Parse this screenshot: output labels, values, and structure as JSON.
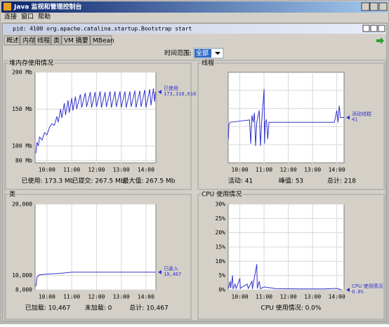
{
  "window": {
    "title": "Java 监视和管理控制台",
    "menu": [
      "连接",
      "窗口",
      "帮助"
    ]
  },
  "frame": {
    "title": "pid: 4100 org.apache.catalina.startup.Bootstrap start"
  },
  "tabs": [
    "概述",
    "内存",
    "线程",
    "类",
    "VM 摘要",
    "MBean"
  ],
  "time_range": {
    "label": "时间范围:",
    "value": "全部"
  },
  "chart_data": [
    {
      "type": "line",
      "title": "堆内存使用情况",
      "x": [
        9.55,
        9.6,
        9.65,
        9.7,
        9.8,
        9.9,
        10.0,
        10.1,
        10.2,
        10.3,
        10.4,
        10.45,
        10.55,
        10.6,
        10.7,
        10.75,
        10.85,
        10.9,
        11.0,
        11.05,
        11.15,
        11.2,
        11.35,
        11.4,
        11.55,
        11.6,
        11.75,
        11.8,
        11.95,
        12.0,
        12.15,
        12.2,
        12.35,
        12.4,
        12.55,
        12.6,
        12.75,
        12.8,
        12.95,
        13.0,
        13.15,
        13.2,
        13.35,
        13.4,
        13.55,
        13.6,
        13.75,
        13.8,
        13.95,
        14.0,
        14.15,
        14.2,
        14.3,
        14.35,
        14.38
      ],
      "series": [
        {
          "name": "已使用",
          "legend_value": "173,318,616",
          "color": "#3333cc",
          "values": [
            90,
            105,
            100,
            112,
            108,
            118,
            115,
            125,
            130,
            128,
            140,
            132,
            150,
            138,
            158,
            142,
            162,
            145,
            165,
            148,
            167,
            150,
            170,
            152,
            172,
            153,
            173,
            152,
            173,
            153,
            174,
            152,
            173,
            153,
            174,
            152,
            174,
            153,
            174,
            152,
            174,
            152,
            174,
            153,
            175,
            152,
            175,
            153,
            176,
            152,
            177,
            155,
            178,
            160,
            173.3
          ]
        }
      ],
      "xlim": [
        9.52,
        14.4
      ],
      "xticks": [
        {
          "value": 10,
          "label": "10:00"
        },
        {
          "value": 11,
          "label": "11:00"
        },
        {
          "value": 12,
          "label": "12:00"
        },
        {
          "value": 13,
          "label": "13:00"
        },
        {
          "value": 14,
          "label": "14:00"
        }
      ],
      "ylim": [
        77,
        200
      ],
      "yticks": [
        {
          "value": 80,
          "label": "80 Mb"
        },
        {
          "value": 100,
          "label": "100 Mb"
        },
        {
          "value": 150,
          "label": "150 Mb"
        },
        {
          "value": 200,
          "label": "200 Mb"
        }
      ],
      "footer": [
        "已使用: 173.3 Mb",
        "已提交: 267.5 Mb",
        "最大值: 267.5 Mb"
      ]
    },
    {
      "type": "line",
      "title": "线程",
      "x": [
        9.53,
        9.55,
        9.6,
        10.4,
        10.45,
        10.5,
        10.55,
        10.6,
        10.65,
        10.7,
        10.8,
        10.85,
        10.9,
        11.0,
        11.02,
        11.05,
        11.1,
        11.15,
        11.2,
        13.9,
        14.0,
        14.05,
        14.1,
        14.15,
        14.3
      ],
      "series": [
        {
          "name": "活动线程",
          "legend_value": "41",
          "color": "#3333cc",
          "values": [
            32,
            38,
            39,
            40,
            30,
            42,
            39,
            43,
            29,
            39,
            44,
            29,
            39,
            53,
            30,
            39,
            40,
            32,
            39,
            39,
            44,
            39,
            46,
            41,
            41
          ]
        }
      ],
      "xlim": [
        9.52,
        14.3
      ],
      "xticks": [
        {
          "value": 10,
          "label": "10:00"
        },
        {
          "value": 11,
          "label": "11:00"
        },
        {
          "value": 12,
          "label": "12:00"
        },
        {
          "value": 13,
          "label": "13:00"
        },
        {
          "value": 14,
          "label": "14:00"
        }
      ],
      "ylim": [
        22,
        60
      ],
      "footer": [
        "活动: 41",
        "峰值: 53",
        "总计: 218"
      ]
    },
    {
      "type": "line",
      "title": "类",
      "x": [
        9.55,
        9.6,
        9.7,
        10.0,
        10.5,
        11.0,
        14.38
      ],
      "series": [
        {
          "name": "已装入",
          "legend_value": "10,467",
          "color": "#3333cc",
          "values": [
            8500,
            9800,
            10100,
            10200,
            10300,
            10467,
            10467
          ]
        }
      ],
      "xlim": [
        9.52,
        14.4
      ],
      "xticks": [
        {
          "value": 10,
          "label": "10:00"
        },
        {
          "value": 11,
          "label": "11:00"
        },
        {
          "value": 12,
          "label": "12:00"
        },
        {
          "value": 13,
          "label": "13:00"
        },
        {
          "value": 14,
          "label": "14:00"
        }
      ],
      "ylim": [
        8000,
        20000
      ],
      "yticks": [
        {
          "value": 8000,
          "label": "8,000"
        },
        {
          "value": 10000,
          "label": "10,000"
        },
        {
          "value": 20000,
          "label": "20,000"
        }
      ],
      "footer": [
        "已加载: 10,467",
        "未加载: 0",
        "总计: 10,467"
      ]
    },
    {
      "type": "line",
      "title": "CPU 使用情况",
      "x": [
        9.53,
        9.6,
        9.62,
        9.7,
        9.72,
        9.8,
        9.85,
        10.0,
        10.02,
        10.1,
        10.3,
        10.35,
        10.5,
        10.52,
        10.7,
        10.72,
        10.8,
        10.85,
        11.0,
        11.5,
        12.5,
        13.5,
        14.0,
        14.2
      ],
      "series": [
        {
          "name": "CPU 使用情况",
          "legend_value": "0.0%",
          "color": "#3333cc",
          "values": [
            0.5,
            3,
            0.5,
            5,
            0.3,
            2,
            0.5,
            4,
            0.5,
            1,
            2,
            0.5,
            3,
            0.3,
            9,
            0.5,
            3,
            0.4,
            1,
            0.4,
            0.3,
            0.3,
            0.5,
            0
          ]
        }
      ],
      "xlim": [
        9.52,
        14.3
      ],
      "xticks": [
        {
          "value": 10,
          "label": "10:00"
        },
        {
          "value": 11,
          "label": "11:00"
        },
        {
          "value": 12,
          "label": "12:00"
        },
        {
          "value": 13,
          "label": "13:00"
        },
        {
          "value": 14,
          "label": "14:00"
        }
      ],
      "ylim": [
        0,
        30
      ],
      "yticks": [
        {
          "value": 0,
          "label": "0%"
        },
        {
          "value": 5,
          "label": "5%"
        },
        {
          "value": 10,
          "label": "10%"
        },
        {
          "value": 15,
          "label": "15%"
        },
        {
          "value": 20,
          "label": "20%"
        },
        {
          "value": 25,
          "label": "25%"
        },
        {
          "value": 30,
          "label": "30%"
        }
      ],
      "footer": [
        "CPU 使用情况: 0.0%"
      ]
    }
  ]
}
